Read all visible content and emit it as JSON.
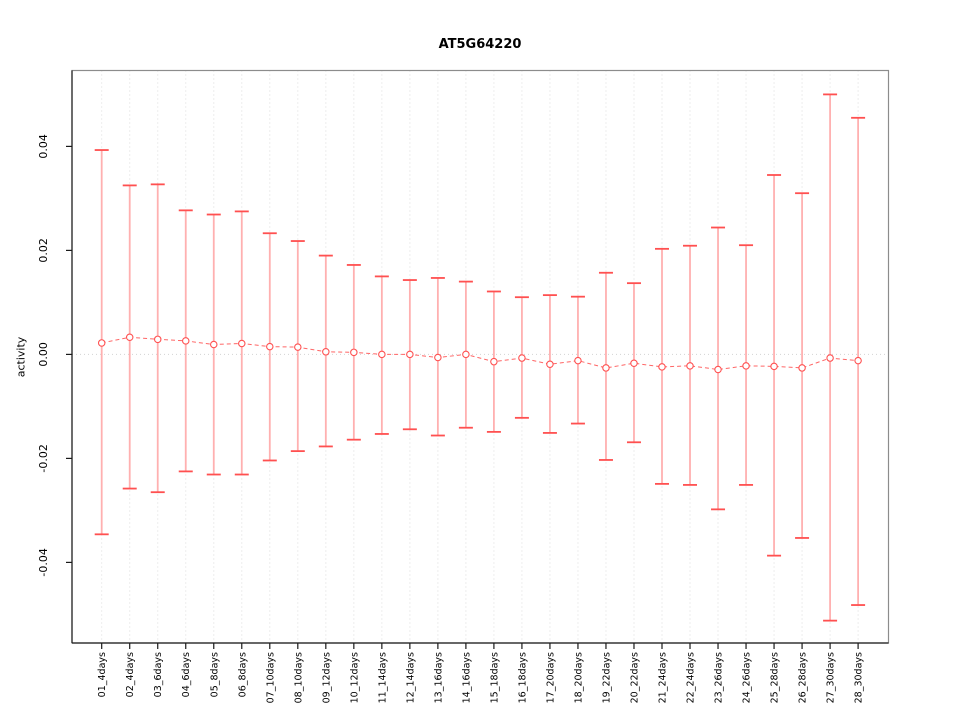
{
  "figure": {
    "title": "AT5G64220",
    "background": "#ffffff"
  },
  "chart_data": {
    "type": "line",
    "subtype": "means-with-error-bars",
    "title": "AT5G64220",
    "xlabel": "",
    "ylabel": "activity",
    "categories": [
      "01_4days",
      "02_4days",
      "03_6days",
      "04_6days",
      "05_8days",
      "06_8days",
      "07_10days",
      "08_10days",
      "09_12days",
      "10_12days",
      "11_14days",
      "12_14days",
      "13_16days",
      "14_16days",
      "15_18days",
      "16_18days",
      "17_20days",
      "18_20days",
      "19_22days",
      "20_22days",
      "21_24days",
      "22_24days",
      "23_26days",
      "24_26days",
      "25_28days",
      "26_28days",
      "27_30days",
      "28_30days"
    ],
    "series": [
      {
        "name": "activity",
        "values": [
          0.0022,
          0.0033,
          0.0029,
          0.0026,
          0.0019,
          0.0021,
          0.0015,
          0.0014,
          0.0005,
          0.0004,
          0.0,
          0.0,
          -0.0006,
          0.0,
          -0.0014,
          -0.0007,
          -0.0019,
          -0.0012,
          -0.0026,
          -0.0017,
          -0.0024,
          -0.0022,
          -0.0029,
          -0.0022,
          -0.0023,
          -0.0026,
          -0.0007,
          -0.0012
        ],
        "upper": [
          0.0393,
          0.0325,
          0.0327,
          0.0277,
          0.0269,
          0.0275,
          0.0233,
          0.0218,
          0.019,
          0.0172,
          0.015,
          0.0143,
          0.0147,
          0.014,
          0.0121,
          0.011,
          0.0114,
          0.0111,
          0.0157,
          0.0137,
          0.0203,
          0.0209,
          0.0244,
          0.021,
          0.0345,
          0.031,
          0.05,
          0.0455
        ],
        "lower": [
          -0.0346,
          -0.0258,
          -0.0265,
          -0.0225,
          -0.0231,
          -0.0231,
          -0.0204,
          -0.0186,
          -0.0177,
          -0.0164,
          -0.0153,
          -0.0144,
          -0.0156,
          -0.0141,
          -0.0149,
          -0.0122,
          -0.0151,
          -0.0133,
          -0.0203,
          -0.0169,
          -0.0249,
          -0.0251,
          -0.0298,
          -0.0251,
          -0.0387,
          -0.0353,
          -0.0512,
          -0.0482
        ]
      }
    ],
    "yticks": [
      -0.04,
      -0.02,
      0,
      0.02,
      0.04
    ],
    "ytick_labels": [
      "-0.04",
      "-0.02",
      "0.00",
      "0.02",
      "0.04"
    ],
    "ylim": [
      -0.0555,
      0.0545
    ],
    "grid": "vertical dotted line at each category",
    "zero_line": true,
    "legend": "none",
    "colors": {
      "point_stroke": "#ff5252",
      "point_fill": "#ffffff",
      "connector": "#ff6666",
      "stem": "#ffb0b0",
      "cap": "#ff5050",
      "gridline": "#dcdcdc",
      "zero_line": "#d2d2d2",
      "frame": "#8c8c8c",
      "axis": "#1a1a1a"
    }
  }
}
